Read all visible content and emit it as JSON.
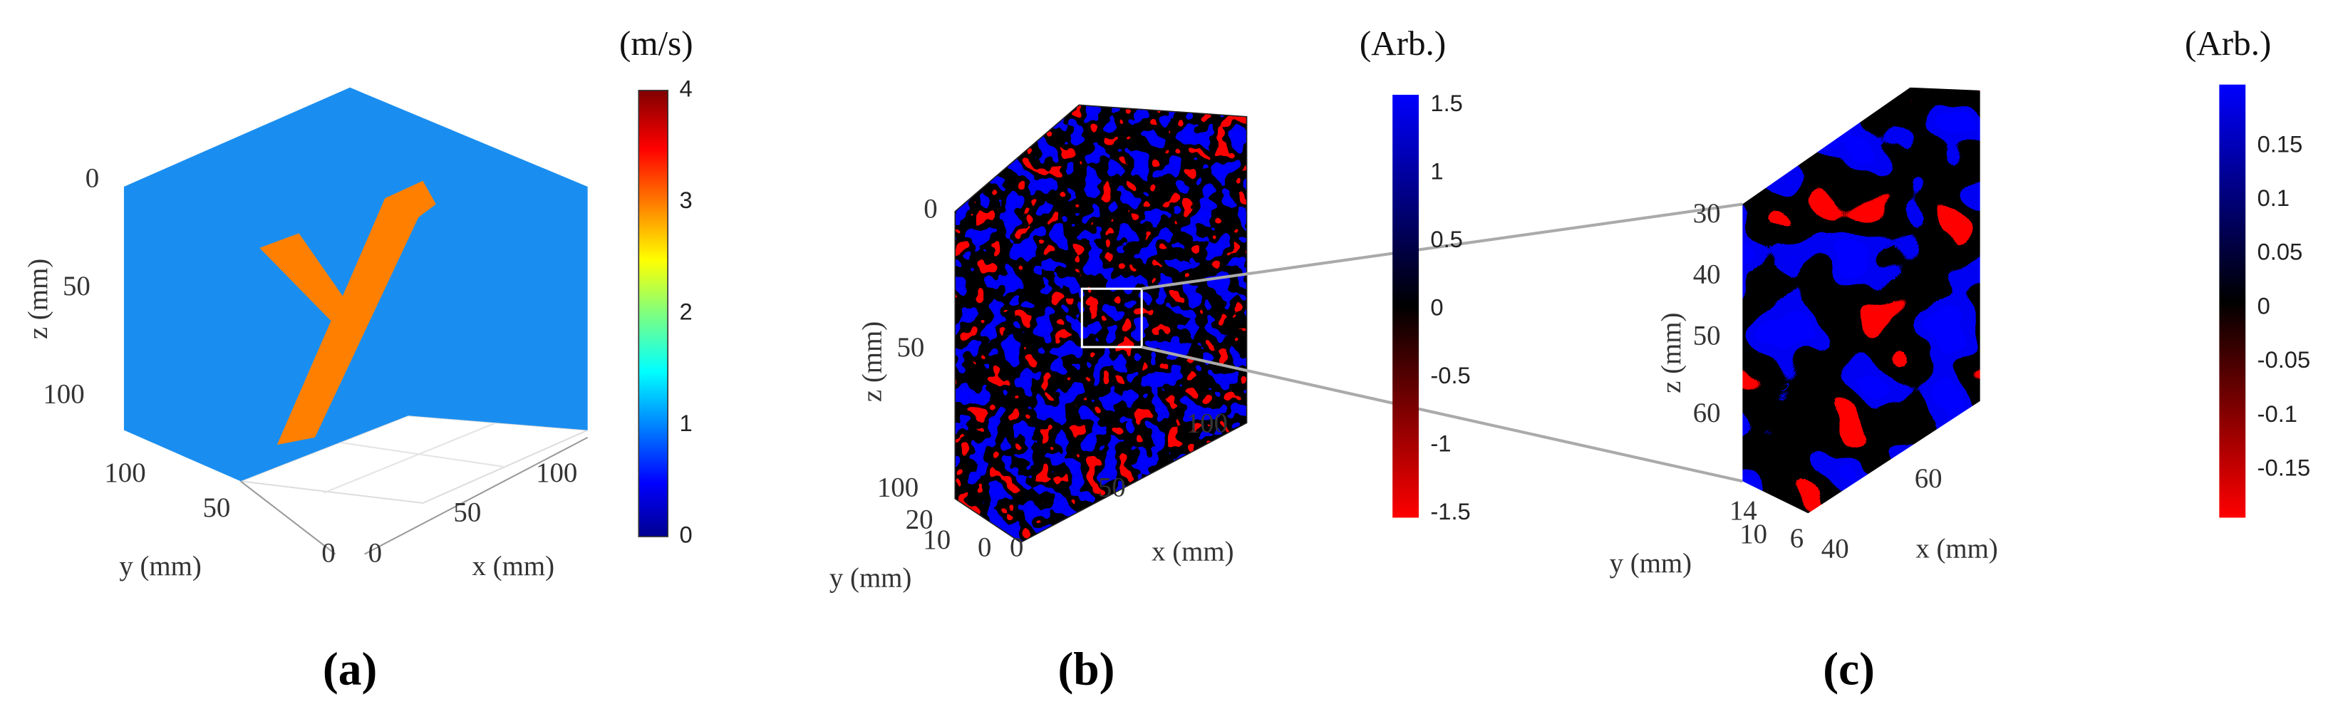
{
  "panels": [
    {
      "label": "(a)",
      "colorbar": {
        "unit": "(m/s)",
        "ticks": [
          "4",
          "3",
          "2",
          "1",
          "0"
        ]
      },
      "axes": {
        "z_label": "z (mm)",
        "z_ticks": [
          "0",
          "50",
          "100"
        ],
        "y_label": "y (mm)",
        "y_ticks": [
          "100",
          "50",
          "0"
        ],
        "x_label": "x (mm)",
        "x_ticks": [
          "0",
          "50",
          "100"
        ]
      }
    },
    {
      "label": "(b)",
      "colorbar": {
        "unit": "(Arb.)",
        "ticks": [
          "1.5",
          "1",
          "0.5",
          "0",
          "-0.5",
          "-1",
          "-1.5"
        ]
      },
      "axes": {
        "z_label": "z (mm)",
        "z_ticks": [
          "0",
          "50",
          "100"
        ],
        "y_label": "y (mm)",
        "y_ticks": [
          "20",
          "10",
          "0"
        ],
        "x_label": "x (mm)",
        "x_ticks": [
          "0",
          "50",
          "100"
        ]
      }
    },
    {
      "label": "(c)",
      "colorbar": {
        "unit": "(Arb.)",
        "ticks": [
          "0.15",
          "0.1",
          "0.05",
          "0",
          "-0.05",
          "-0.1",
          "-0.15"
        ]
      },
      "axes": {
        "z_label": "z (mm)",
        "z_ticks": [
          "30",
          "40",
          "50",
          "60"
        ],
        "y_label": "y (mm)",
        "y_ticks": [
          "14",
          "10",
          "6"
        ],
        "x_label": "x (mm)",
        "x_ticks": [
          "40",
          "60"
        ]
      }
    }
  ]
}
